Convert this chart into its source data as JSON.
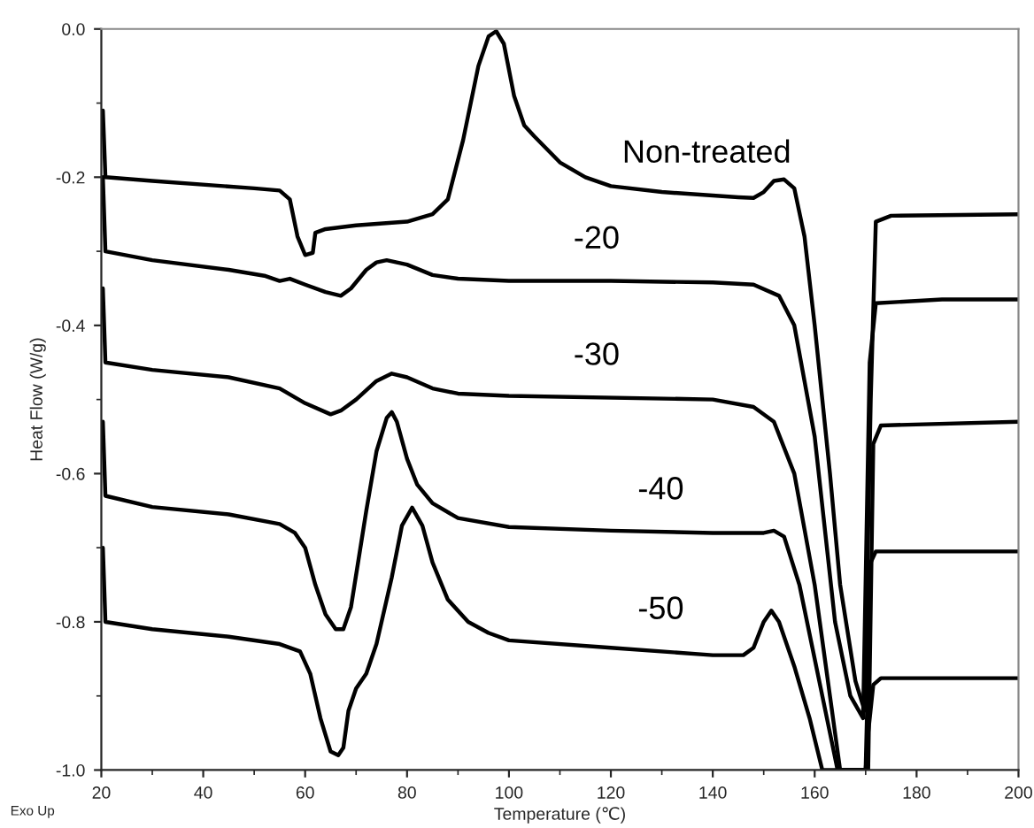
{
  "chart_data": {
    "type": "line",
    "xlabel": "Temperature (℃)",
    "ylabel": "Heat Flow (W/g)",
    "annotations": [
      "Exo Up"
    ],
    "xlim": [
      20,
      200
    ],
    "xticks": [
      20,
      40,
      60,
      80,
      100,
      120,
      140,
      160,
      180,
      200
    ],
    "ylim": [
      -1.0,
      0.0
    ],
    "yticks": [
      {
        "value": -1.0,
        "label": "-1.0"
      },
      {
        "value": -0.8,
        "label": "-0.8"
      },
      {
        "value": -0.6,
        "label": "-0.6"
      },
      {
        "value": -0.4,
        "label": "-0.4"
      },
      {
        "value": -0.2,
        "label": "-0.2"
      },
      {
        "value": 0.0,
        "label": "0.0"
      }
    ],
    "grid": false,
    "legend": false,
    "marker": "none",
    "line_style": "solid",
    "series": [
      {
        "name": "Non-treated",
        "color": "#000000",
        "x": [
          20.3,
          20.8,
          30,
          50,
          55,
          57,
          58.5,
          60,
          61.5,
          62,
          64,
          70,
          80,
          85,
          88,
          91,
          94,
          96,
          97.5,
          99,
          101,
          103,
          105,
          110,
          115,
          120,
          130,
          145,
          148,
          150,
          152,
          154,
          156,
          158,
          160,
          163,
          165,
          168,
          169.8,
          171,
          172,
          175,
          200
        ],
        "values": [
          -0.11,
          -0.2,
          -0.205,
          -0.215,
          -0.218,
          -0.23,
          -0.28,
          -0.305,
          -0.302,
          -0.275,
          -0.27,
          -0.265,
          -0.26,
          -0.25,
          -0.23,
          -0.15,
          -0.05,
          -0.01,
          -0.003,
          -0.02,
          -0.09,
          -0.13,
          -0.145,
          -0.18,
          -0.2,
          -0.212,
          -0.22,
          -0.227,
          -0.228,
          -0.22,
          -0.205,
          -0.203,
          -0.215,
          -0.28,
          -0.4,
          -0.6,
          -0.75,
          -0.88,
          -0.92,
          -0.5,
          -0.26,
          -0.252,
          -0.25
        ]
      },
      {
        "name": "-20",
        "color": "#000000",
        "x": [
          20.3,
          20.8,
          30,
          45,
          52,
          55,
          57,
          60,
          64,
          67,
          69,
          72,
          74,
          76,
          80,
          85,
          90,
          100,
          120,
          140,
          148,
          153,
          156,
          160,
          164,
          167,
          169.5,
          170.8,
          172,
          185,
          200
        ],
        "values": [
          -0.2,
          -0.3,
          -0.312,
          -0.325,
          -0.333,
          -0.34,
          -0.337,
          -0.345,
          -0.355,
          -0.36,
          -0.35,
          -0.325,
          -0.315,
          -0.312,
          -0.318,
          -0.332,
          -0.337,
          -0.34,
          -0.34,
          -0.342,
          -0.345,
          -0.36,
          -0.4,
          -0.55,
          -0.8,
          -0.9,
          -0.93,
          -0.45,
          -0.37,
          -0.365,
          -0.365
        ]
      },
      {
        "name": "-30",
        "color": "#000000",
        "x": [
          20.3,
          20.8,
          30,
          45,
          55,
          60,
          65,
          67,
          70,
          74,
          77,
          80,
          85,
          90,
          100,
          140,
          148,
          152,
          156,
          160,
          163,
          165,
          170.5,
          171.5,
          173,
          200
        ],
        "values": [
          -0.35,
          -0.45,
          -0.46,
          -0.47,
          -0.485,
          -0.505,
          -0.52,
          -0.515,
          -0.5,
          -0.475,
          -0.465,
          -0.47,
          -0.485,
          -0.492,
          -0.495,
          -0.5,
          -0.51,
          -0.53,
          -0.6,
          -0.75,
          -0.9,
          -1.0,
          -1.0,
          -0.56,
          -0.535,
          -0.53
        ]
      },
      {
        "name": "-40",
        "color": "#000000",
        "x": [
          20.3,
          20.8,
          30,
          45,
          55,
          58,
          60,
          62,
          64,
          66,
          67.5,
          69,
          72,
          74,
          76,
          77,
          78,
          80,
          82,
          85,
          90,
          100,
          120,
          140,
          150,
          152,
          154,
          157,
          160,
          163,
          164.5,
          170,
          171,
          172,
          200
        ],
        "values": [
          -0.53,
          -0.63,
          -0.645,
          -0.655,
          -0.668,
          -0.68,
          -0.7,
          -0.75,
          -0.79,
          -0.81,
          -0.81,
          -0.78,
          -0.65,
          -0.57,
          -0.525,
          -0.517,
          -0.53,
          -0.58,
          -0.615,
          -0.64,
          -0.66,
          -0.672,
          -0.677,
          -0.68,
          -0.68,
          -0.677,
          -0.685,
          -0.75,
          -0.85,
          -0.95,
          -1.0,
          -1.0,
          -0.72,
          -0.705,
          -0.705
        ]
      },
      {
        "name": "-50",
        "color": "#000000",
        "x": [
          20.3,
          20.8,
          30,
          45,
          55,
          59,
          61,
          63,
          65,
          66.5,
          67.5,
          68.5,
          70,
          72,
          74,
          77,
          79,
          81,
          83,
          85,
          88,
          92,
          96,
          100,
          120,
          140,
          146,
          148,
          150,
          151.5,
          153,
          156,
          159,
          161.5,
          170,
          170.5,
          171.5,
          173,
          200
        ],
        "values": [
          -0.7,
          -0.8,
          -0.81,
          -0.82,
          -0.83,
          -0.84,
          -0.87,
          -0.93,
          -0.975,
          -0.98,
          -0.97,
          -0.92,
          -0.89,
          -0.87,
          -0.83,
          -0.74,
          -0.67,
          -0.646,
          -0.67,
          -0.72,
          -0.77,
          -0.8,
          -0.815,
          -0.825,
          -0.835,
          -0.845,
          -0.845,
          -0.835,
          -0.8,
          -0.785,
          -0.8,
          -0.86,
          -0.93,
          -1.0,
          -1.0,
          -0.95,
          -0.885,
          -0.876,
          -0.876
        ]
      }
    ]
  }
}
